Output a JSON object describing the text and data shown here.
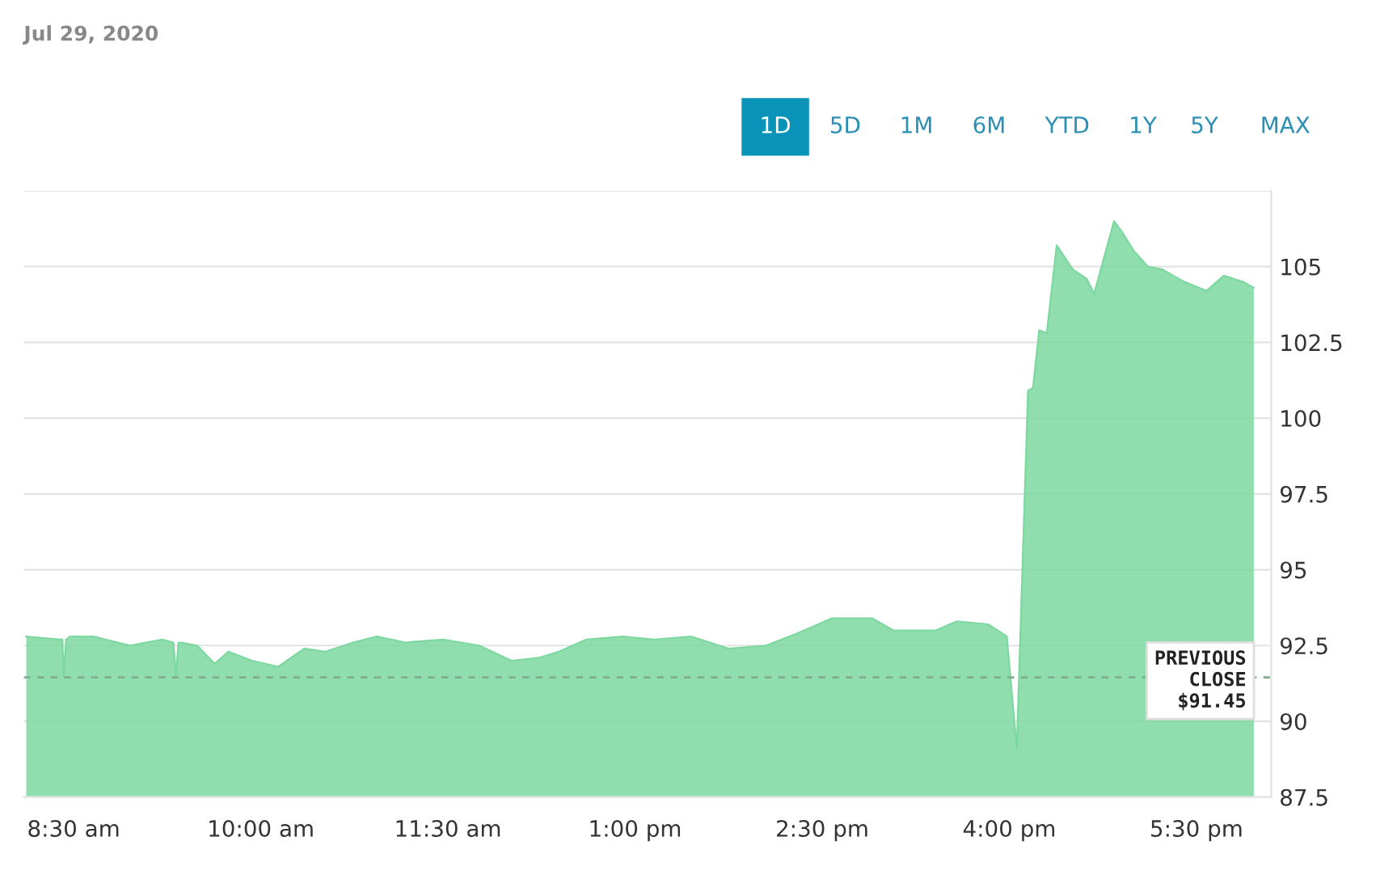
{
  "chart_data": {
    "type": "area",
    "title": "Jul 29, 2020",
    "x": [
      8.12,
      8.39,
      8.41,
      8.42,
      8.44,
      8.47,
      8.66,
      8.95,
      9.21,
      9.3,
      9.32,
      9.34,
      9.36,
      9.49,
      9.63,
      9.74,
      9.93,
      10.14,
      10.35,
      10.52,
      10.74,
      10.93,
      11.16,
      11.46,
      11.75,
      12.01,
      12.23,
      12.39,
      12.61,
      12.9,
      13.16,
      13.45,
      13.75,
      14.05,
      14.3,
      14.58,
      14.9,
      15.07,
      15.41,
      15.58,
      15.83,
      15.98,
      16.06,
      16.15,
      16.19,
      16.24,
      16.3,
      16.38,
      16.51,
      16.62,
      16.68,
      16.72,
      16.84,
      16.91,
      17.0,
      17.11,
      17.23,
      17.4,
      17.58,
      17.72,
      17.87,
      17.96
    ],
    "series": [
      {
        "color": "#7dd8a0",
        "values": [
          92.8,
          92.7,
          92.7,
          91.5,
          92.7,
          92.8,
          92.8,
          92.5,
          92.7,
          92.6,
          91.5,
          92.6,
          92.6,
          92.5,
          91.9,
          92.3,
          92.0,
          91.8,
          92.4,
          92.3,
          92.6,
          92.8,
          92.6,
          92.7,
          92.5,
          92.0,
          92.1,
          92.3,
          92.7,
          92.8,
          92.7,
          92.8,
          92.4,
          92.5,
          92.9,
          93.4,
          93.4,
          93.0,
          93.0,
          93.3,
          93.2,
          92.8,
          89.1,
          100.9,
          101.0,
          102.9,
          102.8,
          105.7,
          104.9,
          104.6,
          104.1,
          104.7,
          106.5,
          106.1,
          105.5,
          105.0,
          104.9,
          104.5,
          104.2,
          104.7,
          104.5,
          104.3
        ]
      }
    ],
    "xlim": [
      8.1,
      18.1
    ],
    "xticks": [
      {
        "value": 8.5,
        "label": "8:30 am"
      },
      {
        "value": 10,
        "label": "10:00 am"
      },
      {
        "value": 11.5,
        "label": "11:30 am"
      },
      {
        "value": 13,
        "label": "1:00 pm"
      },
      {
        "value": 14.5,
        "label": "2:30 pm"
      },
      {
        "value": 16,
        "label": "4:00 pm"
      },
      {
        "value": 17.5,
        "label": "5:30 pm"
      }
    ],
    "ylim": [
      87.5,
      107.5
    ],
    "yticks": [
      87.5,
      90,
      92.5,
      95,
      97.5,
      100,
      102.5,
      105,
      {
        "value": 107.5,
        "label": null
      }
    ],
    "grid": "y",
    "ref_lines": [
      {
        "axis": "y",
        "value": 91.45,
        "label": "PREVIOUS\nCLOSE\n$91.45",
        "color": "#7fae8f",
        "line_style": "dashed"
      }
    ],
    "annotations": [
      "1D",
      "5D",
      "1M",
      "6M",
      "YTD",
      "1Y",
      "5Y",
      "MAX"
    ]
  }
}
